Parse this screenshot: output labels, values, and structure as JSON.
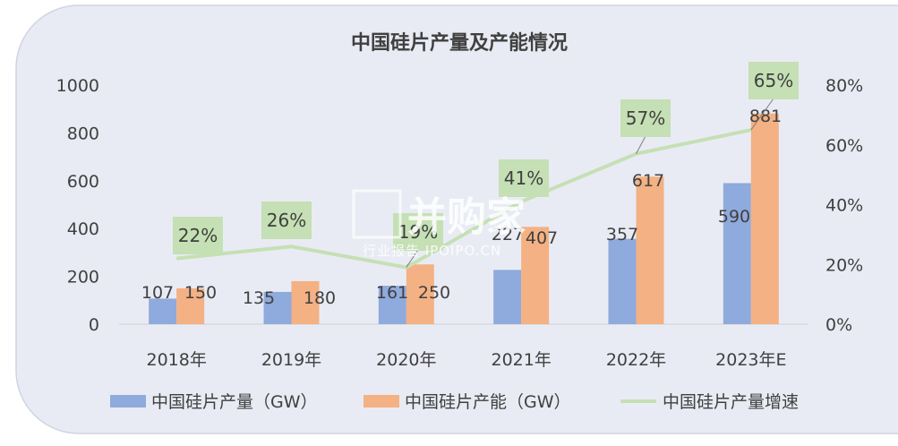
{
  "chart_data": {
    "type": "bar",
    "title": "中国硅片产量及产能情况",
    "categories": [
      "2018年",
      "2019年",
      "2020年",
      "2021年",
      "2022年",
      "2023年E"
    ],
    "series": [
      {
        "name": "中国硅片产量（GW）",
        "kind": "bar",
        "axis": "left",
        "color": "#8faadc",
        "values": [
          107,
          135,
          161,
          227,
          357,
          590
        ]
      },
      {
        "name": "中国硅片产能（GW）",
        "kind": "bar",
        "axis": "right-bar",
        "color": "#f4b183",
        "values": [
          150,
          180,
          250,
          407,
          617,
          881
        ]
      },
      {
        "name": "中国硅片产量增速",
        "kind": "line",
        "axis": "right",
        "color": "#c5e0b4",
        "values": [
          22,
          26,
          19,
          41,
          57,
          65
        ],
        "labels": [
          "22%",
          "26%",
          "19%",
          "41%",
          "57%",
          "65%"
        ]
      }
    ],
    "y_left": {
      "ticks": [
        "0",
        "200",
        "400",
        "600",
        "800",
        "1000"
      ],
      "range": [
        0,
        1000
      ]
    },
    "y_right": {
      "ticks": [
        "0%",
        "20%",
        "40%",
        "60%",
        "80%"
      ],
      "range": [
        0,
        80
      ]
    },
    "legend": "bottom",
    "grid": false
  },
  "watermark": {
    "main": "并购家",
    "sub": "行业报告 IPOIPO.CN"
  },
  "colors": {
    "card_bg": "#e9ebf4",
    "card_stroke": "#cfd3e3",
    "label_box": "#c5e0b4"
  }
}
